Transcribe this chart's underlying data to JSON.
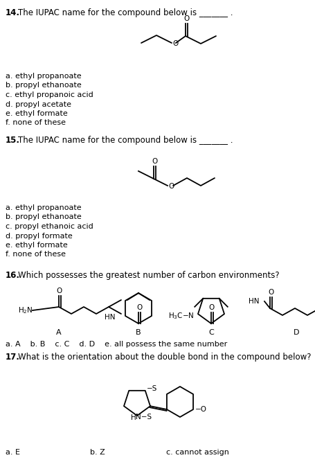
{
  "bg_color": "#ffffff",
  "text_color": "#000000",
  "q14_options": [
    "a. ethyl propanoate",
    "b. propyl ethanoate",
    "c. ethyl propanoic acid",
    "d. propyl acetate",
    "e. ethyl formate",
    "f. none of these"
  ],
  "q15_options": [
    "a. ethyl propanoate",
    "b. propyl ethanoate",
    "c. propyl ethanoic acid",
    "d. propyl formate",
    "e. ethyl formate",
    "f. none of these"
  ],
  "q16_options": "a. A    b. B    c. C    d. D    e. all possess the same number",
  "font_size_q": 8.5,
  "font_size_opt": 8.0,
  "font_size_struct": 7.5
}
